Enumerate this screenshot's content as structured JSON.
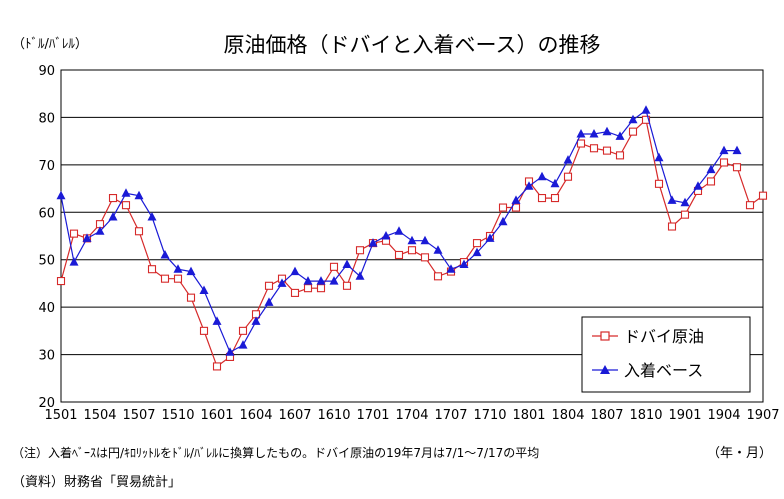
{
  "chart_data": {
    "type": "line",
    "title": "原油価格（ドバイと入着ベース）の推移",
    "ylabel": "（ﾄﾞﾙ/ﾊﾞﾚﾙ）",
    "xlabel": "（年・月）",
    "ylim": [
      20,
      90
    ],
    "yticks": [
      20,
      30,
      40,
      50,
      60,
      70,
      80,
      90
    ],
    "grid": true,
    "legend_position": "bottom-right",
    "x_tick_labels": [
      "1501",
      "1504",
      "1507",
      "1510",
      "1601",
      "1604",
      "1607",
      "1610",
      "1701",
      "1704",
      "1707",
      "1710",
      "1801",
      "1804",
      "1807",
      "1810",
      "1901",
      "1904",
      "1907"
    ],
    "n_points": 55,
    "series": [
      {
        "name": "ドバイ原油",
        "color": "#d62a2a",
        "marker": "square-open",
        "start_index": 0,
        "values": [
          45.5,
          55.5,
          54.5,
          57.5,
          63,
          61.5,
          56,
          48,
          46,
          46,
          42,
          35,
          27.5,
          29.5,
          35,
          38.5,
          44.5,
          46,
          43,
          44,
          44,
          48.5,
          44.5,
          52,
          53.5,
          54,
          51,
          52,
          50.5,
          46.5,
          47.5,
          49.5,
          53.5,
          55,
          61,
          61,
          66.5,
          63,
          63,
          67.5,
          74.5,
          73.5,
          73,
          72,
          77,
          79.5,
          66,
          57,
          59.5,
          64.5,
          66.5,
          70.5,
          69.5,
          61.5,
          63.5
        ]
      },
      {
        "name": "入着ベース",
        "color": "#1a1ad6",
        "marker": "triangle-filled",
        "start_index": 0,
        "values": [
          63.5,
          49.5,
          54.5,
          56,
          59,
          64,
          63.5,
          59,
          51,
          48,
          47.5,
          43.5,
          37,
          30.5,
          32,
          37,
          41,
          45,
          47.5,
          45.5,
          45.5,
          45.5,
          49,
          46.5,
          53.5,
          55,
          56,
          54,
          54,
          52,
          48,
          49,
          51.5,
          54.5,
          58,
          62.5,
          65.5,
          67.5,
          66,
          71,
          76.5,
          76.5,
          77,
          76,
          79.5,
          81.5,
          71.5,
          62.5,
          62,
          65.5,
          69,
          73,
          73
        ]
      }
    ]
  },
  "notes": {
    "note1": "（注）入着ﾍﾞｰｽは円/ｷﾛﾘｯﾄﾙをﾄﾞﾙ/ﾊﾞﾚﾙに換算したもの。ドバイ原油の19年7月は7/1～7/17の平均",
    "source": "（資料）財務省「貿易統計」"
  }
}
